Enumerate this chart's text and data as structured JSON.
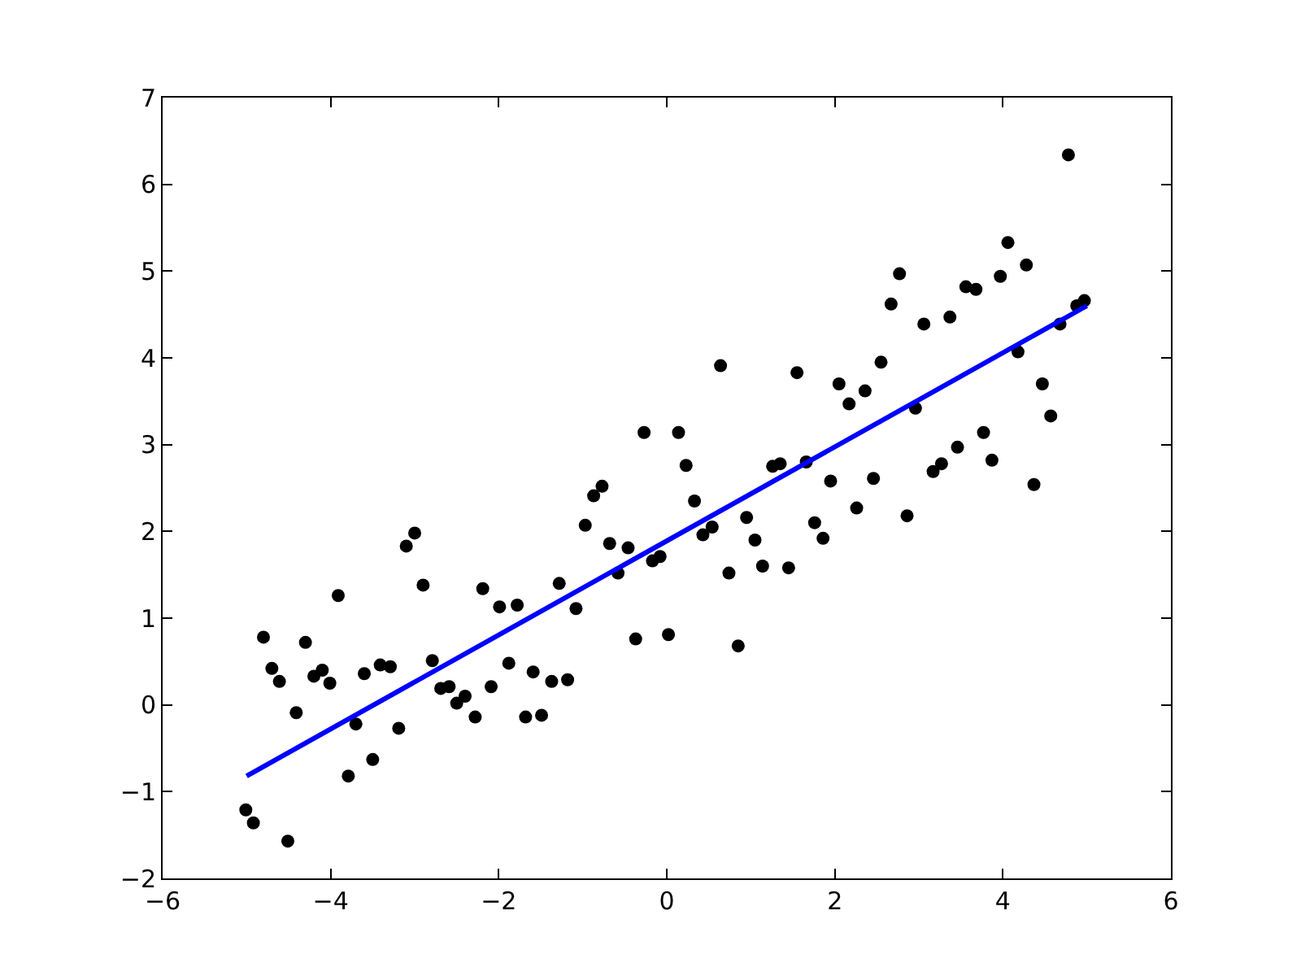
{
  "chart_data": {
    "type": "scatter",
    "xlim": [
      -6,
      6
    ],
    "ylim": [
      -2,
      7
    ],
    "xticks": [
      -6,
      -4,
      -2,
      0,
      2,
      4,
      6
    ],
    "yticks": [
      -2,
      -1,
      0,
      1,
      2,
      3,
      4,
      5,
      6,
      7
    ],
    "marker": "circle",
    "series": [
      {
        "color": "#000000",
        "x": [
          -5.01,
          -4.92,
          -4.8,
          -4.7,
          -4.61,
          -4.51,
          -4.41,
          -4.3,
          -4.2,
          -4.1,
          -4.01,
          -3.91,
          -3.79,
          -3.7,
          -3.6,
          -3.5,
          -3.41,
          -3.29,
          -3.19,
          -3.1,
          -3.0,
          -2.9,
          -2.79,
          -2.69,
          -2.59,
          -2.5,
          -2.4,
          -2.28,
          -2.19,
          -2.09,
          -1.99,
          -1.88,
          -1.78,
          -1.68,
          -1.59,
          -1.49,
          -1.37,
          -1.28,
          -1.18,
          -1.08,
          -0.97,
          -0.87,
          -0.77,
          -0.68,
          -0.58,
          -0.46,
          -0.37,
          -0.27,
          -0.17,
          -0.08,
          0.02,
          0.14,
          0.23,
          0.33,
          0.43,
          0.54,
          0.64,
          0.74,
          0.85,
          0.95,
          1.05,
          1.14,
          1.26,
          1.35,
          1.45,
          1.55,
          1.66,
          1.76,
          1.86,
          1.95,
          2.05,
          2.17,
          2.26,
          2.36,
          2.46,
          2.55,
          2.67,
          2.77,
          2.86,
          2.96,
          3.06,
          3.17,
          3.27,
          3.37,
          3.46,
          3.56,
          3.68,
          3.77,
          3.87,
          3.97,
          4.06,
          4.18,
          4.28,
          4.37,
          4.47,
          4.57,
          4.68,
          4.78,
          4.88,
          4.97
        ],
        "values": [
          -1.21,
          -1.36,
          0.78,
          0.42,
          0.27,
          -1.57,
          -0.09,
          0.72,
          0.33,
          0.4,
          0.25,
          1.26,
          -0.82,
          -0.22,
          0.36,
          -0.63,
          0.46,
          0.44,
          -0.27,
          1.83,
          1.98,
          1.38,
          0.51,
          0.19,
          0.21,
          0.02,
          0.1,
          -0.14,
          1.34,
          0.21,
          1.13,
          0.48,
          1.15,
          -0.14,
          0.38,
          -0.12,
          0.27,
          1.4,
          0.29,
          1.11,
          2.07,
          2.41,
          2.52,
          1.86,
          1.52,
          1.81,
          0.76,
          3.14,
          1.66,
          1.71,
          0.81,
          3.14,
          2.76,
          2.35,
          1.96,
          2.05,
          3.91,
          1.52,
          0.68,
          2.16,
          1.9,
          1.6,
          2.75,
          2.78,
          1.58,
          3.83,
          2.8,
          2.1,
          1.92,
          2.58,
          3.7,
          3.47,
          2.27,
          3.62,
          2.61,
          3.95,
          4.62,
          4.97,
          2.18,
          3.42,
          4.39,
          2.69,
          2.78,
          4.47,
          2.97,
          4.82,
          4.79,
          3.14,
          2.82,
          4.94,
          5.33,
          4.07,
          5.07,
          2.54,
          3.7,
          3.33,
          4.39,
          6.34,
          4.6,
          4.66
        ]
      },
      {
        "type": "line",
        "color": "#0000ff",
        "marker": "none",
        "x": [
          -5,
          5
        ],
        "values": [
          -0.82,
          4.6
        ]
      }
    ]
  }
}
